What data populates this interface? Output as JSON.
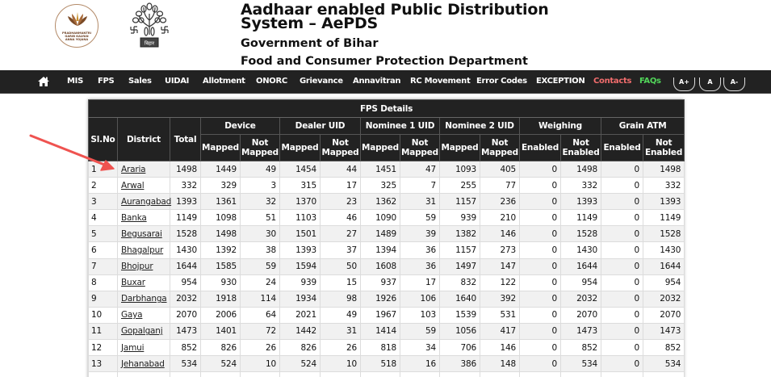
{
  "header": {
    "logo_left_text": [
      "PRADHANMANTRI",
      "GARIB KALYAN",
      "ANNA YOJANA"
    ],
    "logo_right_label": "बिहार",
    "title": "Aadhaar enabled Public Distribution System – AePDS",
    "subtitle_1": "Government of Bihar",
    "subtitle_2": "Food and Consumer Protection Department"
  },
  "nav": {
    "home_icon": "home-icon",
    "items": [
      "MIS",
      "FPS",
      "Sales",
      "UIDAI",
      "Allotment",
      "ONORC",
      "Grievance",
      "Annavitran",
      "RC Movement",
      "Error Codes",
      "EXCEPTION"
    ],
    "contacts": "Contacts",
    "faqs": "FAQs",
    "font_size_buttons": [
      "A+",
      "A",
      "A-"
    ],
    "colors": {
      "contacts": "#f26d6d",
      "faqs": "#52d65a",
      "bar": "#222222"
    }
  },
  "table": {
    "caption": "FPS Details",
    "columns": {
      "sl_no": "Sl.No",
      "district": "District",
      "total": "Total",
      "groups": [
        "Device",
        "Dealer UID",
        "Nominee 1 UID",
        "Nominee 2 UID",
        "Weighing",
        "Grain ATM"
      ],
      "sub": {
        "mapped": "Mapped",
        "not_mapped": "Not Mapped",
        "enabled": "Enabled",
        "not_enabled": "Not Enabled"
      }
    },
    "rows": [
      [
        "1",
        "Araria",
        "1498",
        "1449",
        "49",
        "1454",
        "44",
        "1451",
        "47",
        "1093",
        "405",
        "0",
        "1498",
        "0",
        "1498"
      ],
      [
        "2",
        "Arwal",
        "332",
        "329",
        "3",
        "315",
        "17",
        "325",
        "7",
        "255",
        "77",
        "0",
        "332",
        "0",
        "332"
      ],
      [
        "3",
        "Aurangabad",
        "1393",
        "1361",
        "32",
        "1370",
        "23",
        "1362",
        "31",
        "1157",
        "236",
        "0",
        "1393",
        "0",
        "1393"
      ],
      [
        "4",
        "Banka",
        "1149",
        "1098",
        "51",
        "1103",
        "46",
        "1090",
        "59",
        "939",
        "210",
        "0",
        "1149",
        "0",
        "1149"
      ],
      [
        "5",
        "Begusarai",
        "1528",
        "1498",
        "30",
        "1501",
        "27",
        "1489",
        "39",
        "1382",
        "146",
        "0",
        "1528",
        "0",
        "1528"
      ],
      [
        "6",
        "Bhagalpur",
        "1430",
        "1392",
        "38",
        "1393",
        "37",
        "1394",
        "36",
        "1157",
        "273",
        "0",
        "1430",
        "0",
        "1430"
      ],
      [
        "7",
        "Bhojpur",
        "1644",
        "1585",
        "59",
        "1594",
        "50",
        "1608",
        "36",
        "1497",
        "147",
        "0",
        "1644",
        "0",
        "1644"
      ],
      [
        "8",
        "Buxar",
        "954",
        "930",
        "24",
        "939",
        "15",
        "937",
        "17",
        "832",
        "122",
        "0",
        "954",
        "0",
        "954"
      ],
      [
        "9",
        "Darbhanga",
        "2032",
        "1918",
        "114",
        "1934",
        "98",
        "1926",
        "106",
        "1640",
        "392",
        "0",
        "2032",
        "0",
        "2032"
      ],
      [
        "10",
        "Gaya",
        "2070",
        "2006",
        "64",
        "2021",
        "49",
        "1967",
        "103",
        "1539",
        "531",
        "0",
        "2070",
        "0",
        "2070"
      ],
      [
        "11",
        "Gopalganj",
        "1473",
        "1401",
        "72",
        "1442",
        "31",
        "1414",
        "59",
        "1056",
        "417",
        "0",
        "1473",
        "0",
        "1473"
      ],
      [
        "12",
        "Jamui",
        "852",
        "826",
        "26",
        "826",
        "26",
        "818",
        "34",
        "706",
        "146",
        "0",
        "852",
        "0",
        "852"
      ],
      [
        "13",
        "Jehanabad",
        "534",
        "524",
        "10",
        "524",
        "10",
        "518",
        "16",
        "386",
        "148",
        "0",
        "534",
        "0",
        "534"
      ],
      [
        "",
        "",
        "",
        "",
        "",
        "",
        "",
        "",
        "",
        "",
        "",
        "",
        "",
        "",
        ""
      ]
    ]
  },
  "annotation": {
    "arrow_color": "#ef5350",
    "points_to": "Araria"
  }
}
